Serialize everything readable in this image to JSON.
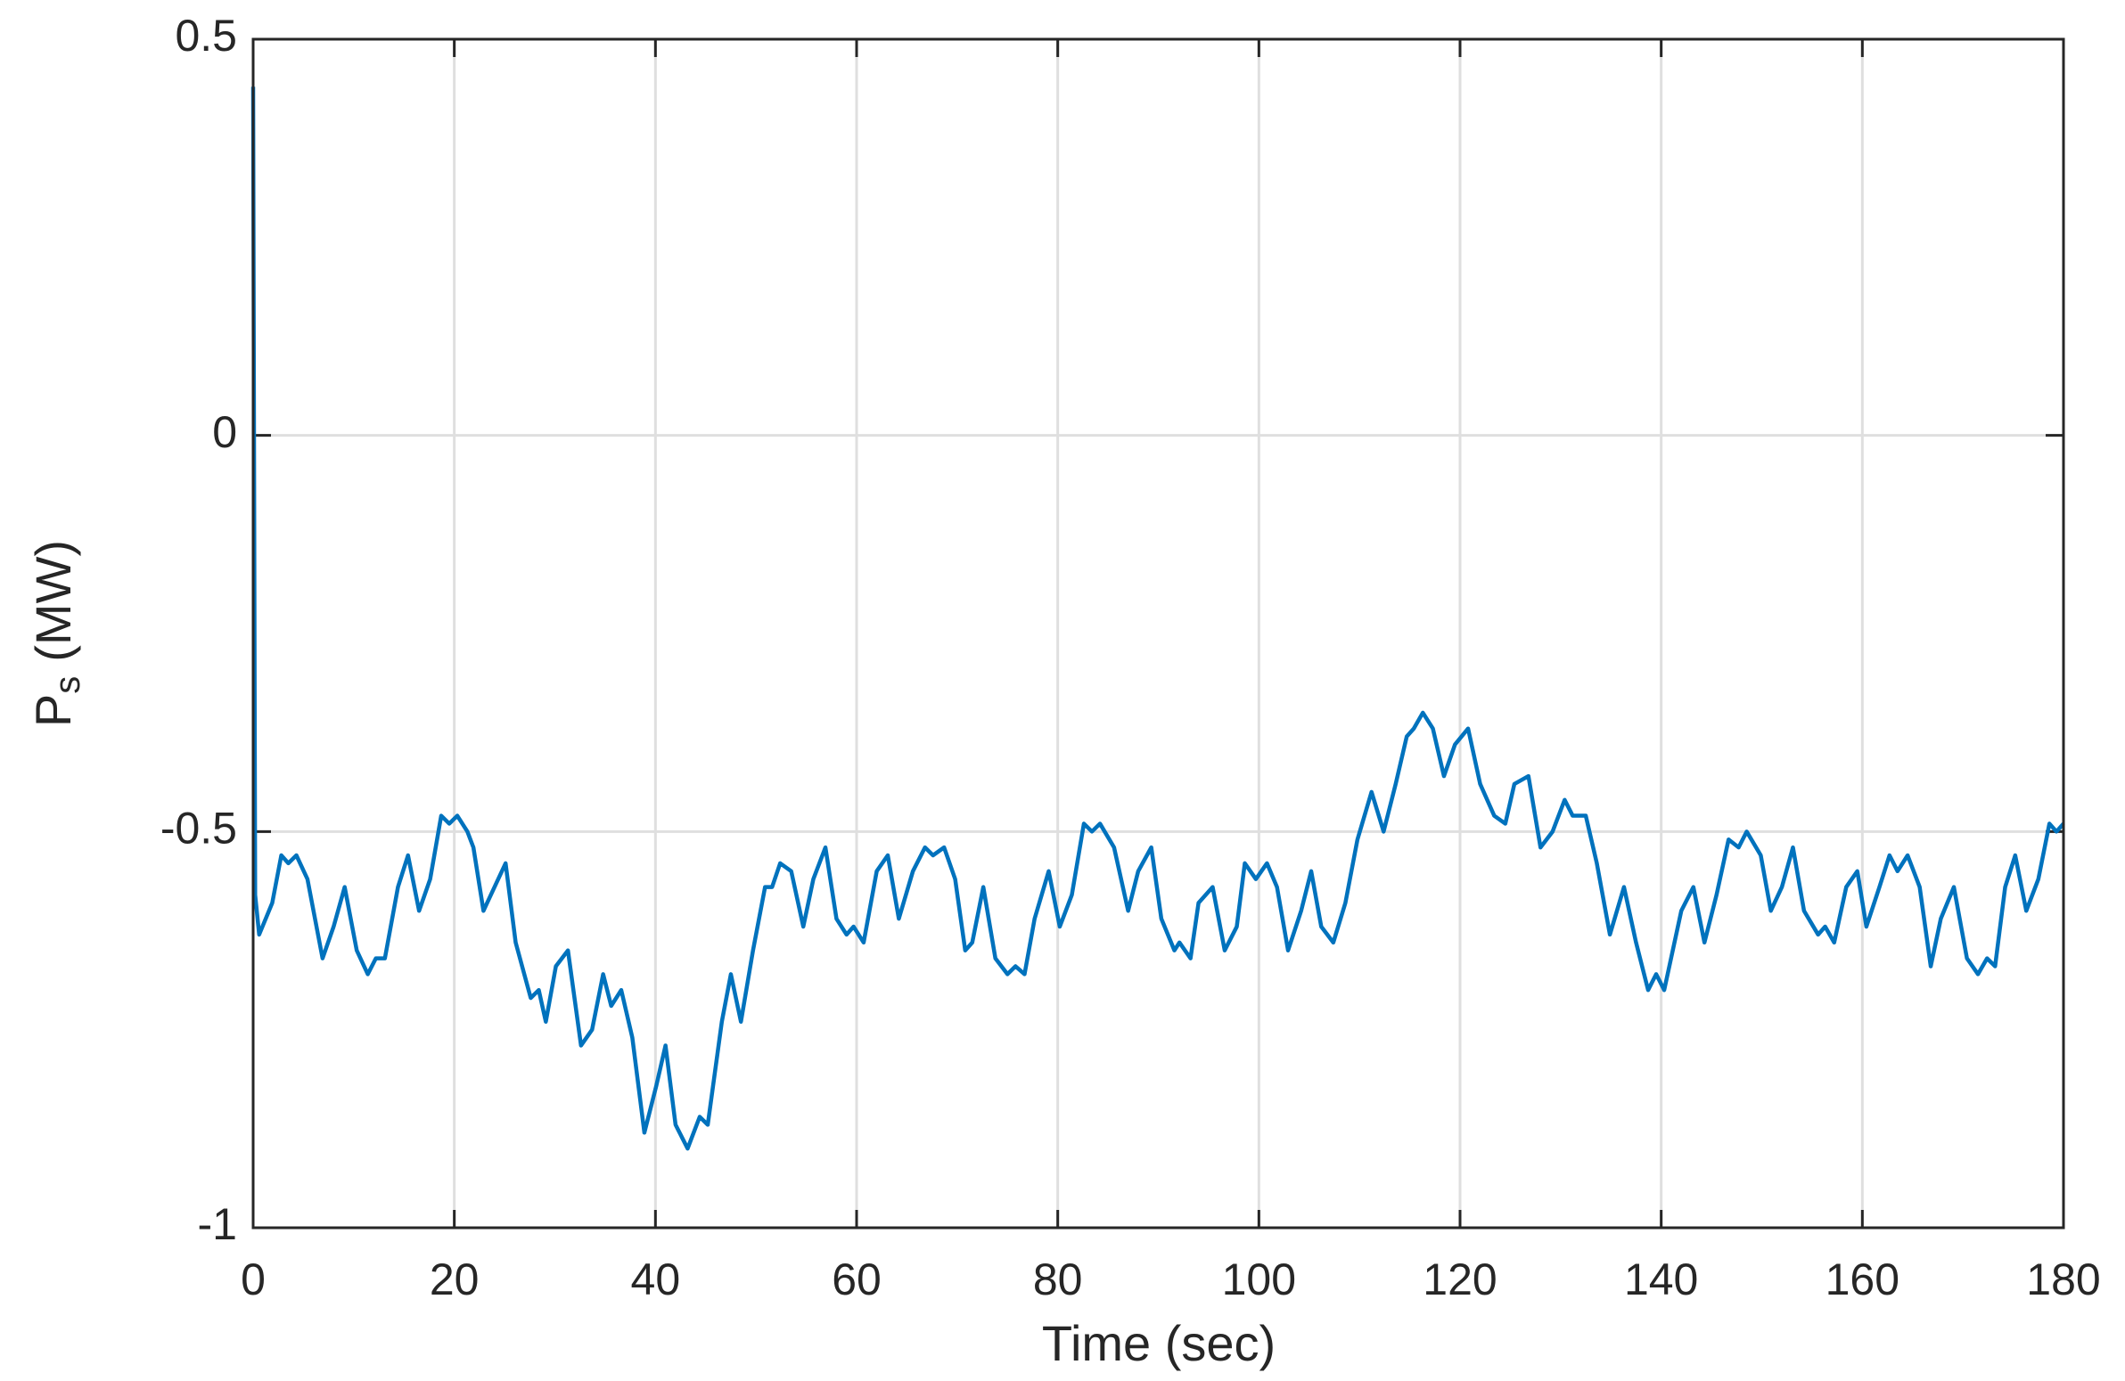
{
  "chart_data": {
    "type": "line",
    "xlabel": "Time (sec)",
    "ylabel": {
      "main": "P",
      "sub": "s",
      "rest": "(MW)"
    },
    "x": [
      0,
      0.2,
      0.6,
      1.9,
      2.8,
      3.5,
      4.3,
      5.4,
      6.9,
      8,
      9.1,
      10.3,
      11.4,
      12.2,
      13.1,
      14.4,
      15.4,
      16.5,
      17.6,
      18.7,
      19.5,
      20.3,
      21.3,
      21.9,
      22.9,
      24,
      25.1,
      26.1,
      27.6,
      28.4,
      29.1,
      30.1,
      31.3,
      32.6,
      33.7,
      34.8,
      35.6,
      36.6,
      37.7,
      38.9,
      40.1,
      41,
      42,
      43.2,
      44.4,
      45.2,
      46.6,
      47.5,
      48.5,
      49.7,
      50.9,
      51.6,
      52.4,
      53.5,
      54.7,
      55.7,
      56.9,
      58,
      59,
      59.7,
      60.7,
      62,
      63.1,
      64.2,
      65.6,
      66.8,
      67.6,
      68.7,
      69.8,
      70.8,
      71.5,
      72.6,
      73.8,
      75,
      75.8,
      76.7,
      77.7,
      79.1,
      80.2,
      81.4,
      82.6,
      83.4,
      84.2,
      85.6,
      87,
      88,
      89.3,
      90.3,
      91.6,
      92.1,
      93.2,
      94,
      95.4,
      96.6,
      97.8,
      98.6,
      99.7,
      100.8,
      101.8,
      102.9,
      104.2,
      105.2,
      106.2,
      107.4,
      108.6,
      109.8,
      111.2,
      112.4,
      113.6,
      114.7,
      115.4,
      116.3,
      117.3,
      118.4,
      119.5,
      120.8,
      122,
      123.4,
      124.5,
      125.4,
      126.8,
      128,
      129.2,
      130.4,
      131.2,
      132.5,
      133.6,
      134.9,
      136.3,
      137.5,
      138.7,
      139.5,
      140.3,
      142,
      143.2,
      144.3,
      145.5,
      146.7,
      147.7,
      148.5,
      149.9,
      150.9,
      152,
      153.1,
      154.2,
      155.6,
      156.3,
      157.2,
      158.4,
      159.5,
      160.4,
      161.7,
      162.7,
      163.5,
      164.5,
      165.7,
      166.8,
      167.8,
      169.1,
      170.4,
      171.5,
      172.4,
      173.2,
      174.2,
      175.2,
      176.3,
      177.5,
      178.6,
      179.3,
      180
    ],
    "values": [
      0.44,
      -0.58,
      -0.63,
      -0.59,
      -0.53,
      -0.54,
      -0.53,
      -0.56,
      -0.66,
      -0.62,
      -0.57,
      -0.65,
      -0.68,
      -0.66,
      -0.66,
      -0.57,
      -0.53,
      -0.6,
      -0.56,
      -0.48,
      -0.49,
      -0.48,
      -0.5,
      -0.52,
      -0.6,
      -0.57,
      -0.54,
      -0.64,
      -0.71,
      -0.7,
      -0.74,
      -0.67,
      -0.65,
      -0.77,
      -0.75,
      -0.68,
      -0.72,
      -0.7,
      -0.76,
      -0.88,
      -0.82,
      -0.77,
      -0.87,
      -0.9,
      -0.86,
      -0.87,
      -0.74,
      -0.68,
      -0.74,
      -0.65,
      -0.57,
      -0.57,
      -0.54,
      -0.55,
      -0.62,
      -0.56,
      -0.52,
      -0.61,
      -0.63,
      -0.62,
      -0.64,
      -0.55,
      -0.53,
      -0.61,
      -0.55,
      -0.52,
      -0.53,
      -0.52,
      -0.56,
      -0.65,
      -0.64,
      -0.57,
      -0.66,
      -0.68,
      -0.67,
      -0.68,
      -0.61,
      -0.55,
      -0.62,
      -0.58,
      -0.49,
      -0.5,
      -0.49,
      -0.52,
      -0.6,
      -0.55,
      -0.52,
      -0.61,
      -0.65,
      -0.64,
      -0.66,
      -0.59,
      -0.57,
      -0.65,
      -0.62,
      -0.54,
      -0.56,
      -0.54,
      -0.57,
      -0.65,
      -0.6,
      -0.55,
      -0.62,
      -0.64,
      -0.59,
      -0.51,
      -0.45,
      -0.5,
      -0.44,
      -0.38,
      -0.37,
      -0.35,
      -0.37,
      -0.43,
      -0.39,
      -0.37,
      -0.44,
      -0.48,
      -0.49,
      -0.44,
      -0.43,
      -0.52,
      -0.5,
      -0.46,
      -0.48,
      -0.48,
      -0.54,
      -0.63,
      -0.57,
      -0.64,
      -0.7,
      -0.68,
      -0.7,
      -0.6,
      -0.57,
      -0.64,
      -0.58,
      -0.51,
      -0.52,
      -0.5,
      -0.53,
      -0.6,
      -0.57,
      -0.52,
      -0.6,
      -0.63,
      -0.62,
      -0.64,
      -0.57,
      -0.55,
      -0.62,
      -0.57,
      -0.53,
      -0.55,
      -0.53,
      -0.57,
      -0.67,
      -0.61,
      -0.57,
      -0.66,
      -0.68,
      -0.66,
      -0.67,
      -0.57,
      -0.53,
      -0.6,
      -0.56,
      -0.49,
      -0.5,
      -0.49
    ],
    "color": "#0072bd",
    "xlim": [
      0,
      180
    ],
    "xticks": [
      0,
      20,
      40,
      60,
      80,
      100,
      120,
      140,
      160,
      180
    ],
    "ylim": [
      -1,
      0.5
    ],
    "yticks": [
      -1,
      -0.5,
      0,
      0.5
    ],
    "grid": true
  }
}
